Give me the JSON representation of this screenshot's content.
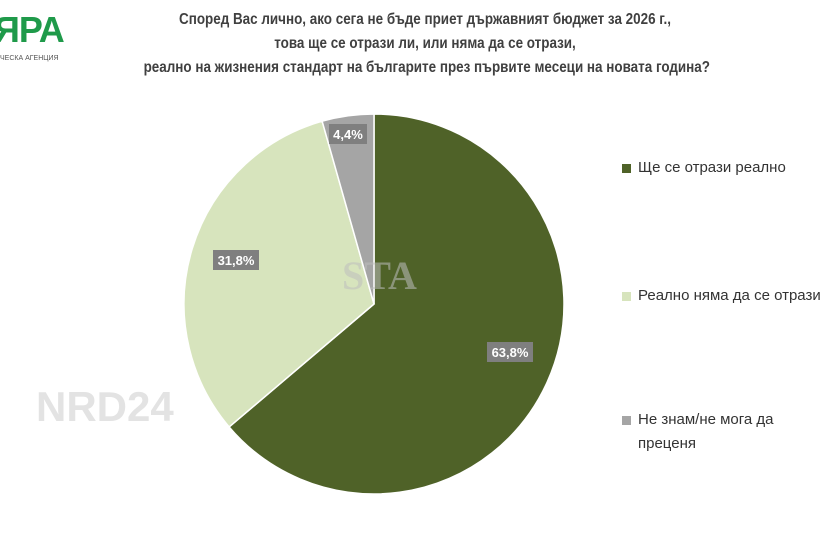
{
  "logo": {
    "text": "ЯРА",
    "subtitle": "ЧЕСКА АГЕНЦИЯ"
  },
  "watermarks": [
    "STA",
    "NRD24"
  ],
  "chart_data": {
    "type": "pie",
    "title": "Според Вас лично, ако сега не бъде приет държавният бюджет за 2026 г., това ще се отрази ли, или няма да се отрази, реално на жизнения стандарт на българите през първите месеци на новата година?",
    "title_lines": [
      "Според Вас лично, ако сега не бъде приет държавният бюджет за 2026 г.,",
      "това ще се отрази ли, или няма да се отрази,",
      "реално на жизнения стандарт на българите през първите месеци на новата година?"
    ],
    "slices": [
      {
        "label": "Ще се отрази реално",
        "value": 63.8,
        "data_label": "63,8%",
        "color": "#4f6228"
      },
      {
        "label": "Реално няма да се отрази",
        "value": 31.8,
        "data_label": "31,8%",
        "color": "#d7e4bd"
      },
      {
        "label": "Не знам/не мога да преценя",
        "value": 4.4,
        "data_label": "4,4%",
        "color": "#a5a5a5"
      }
    ],
    "start_angle": "12 o'clock, clockwise",
    "legend_position": "right"
  }
}
